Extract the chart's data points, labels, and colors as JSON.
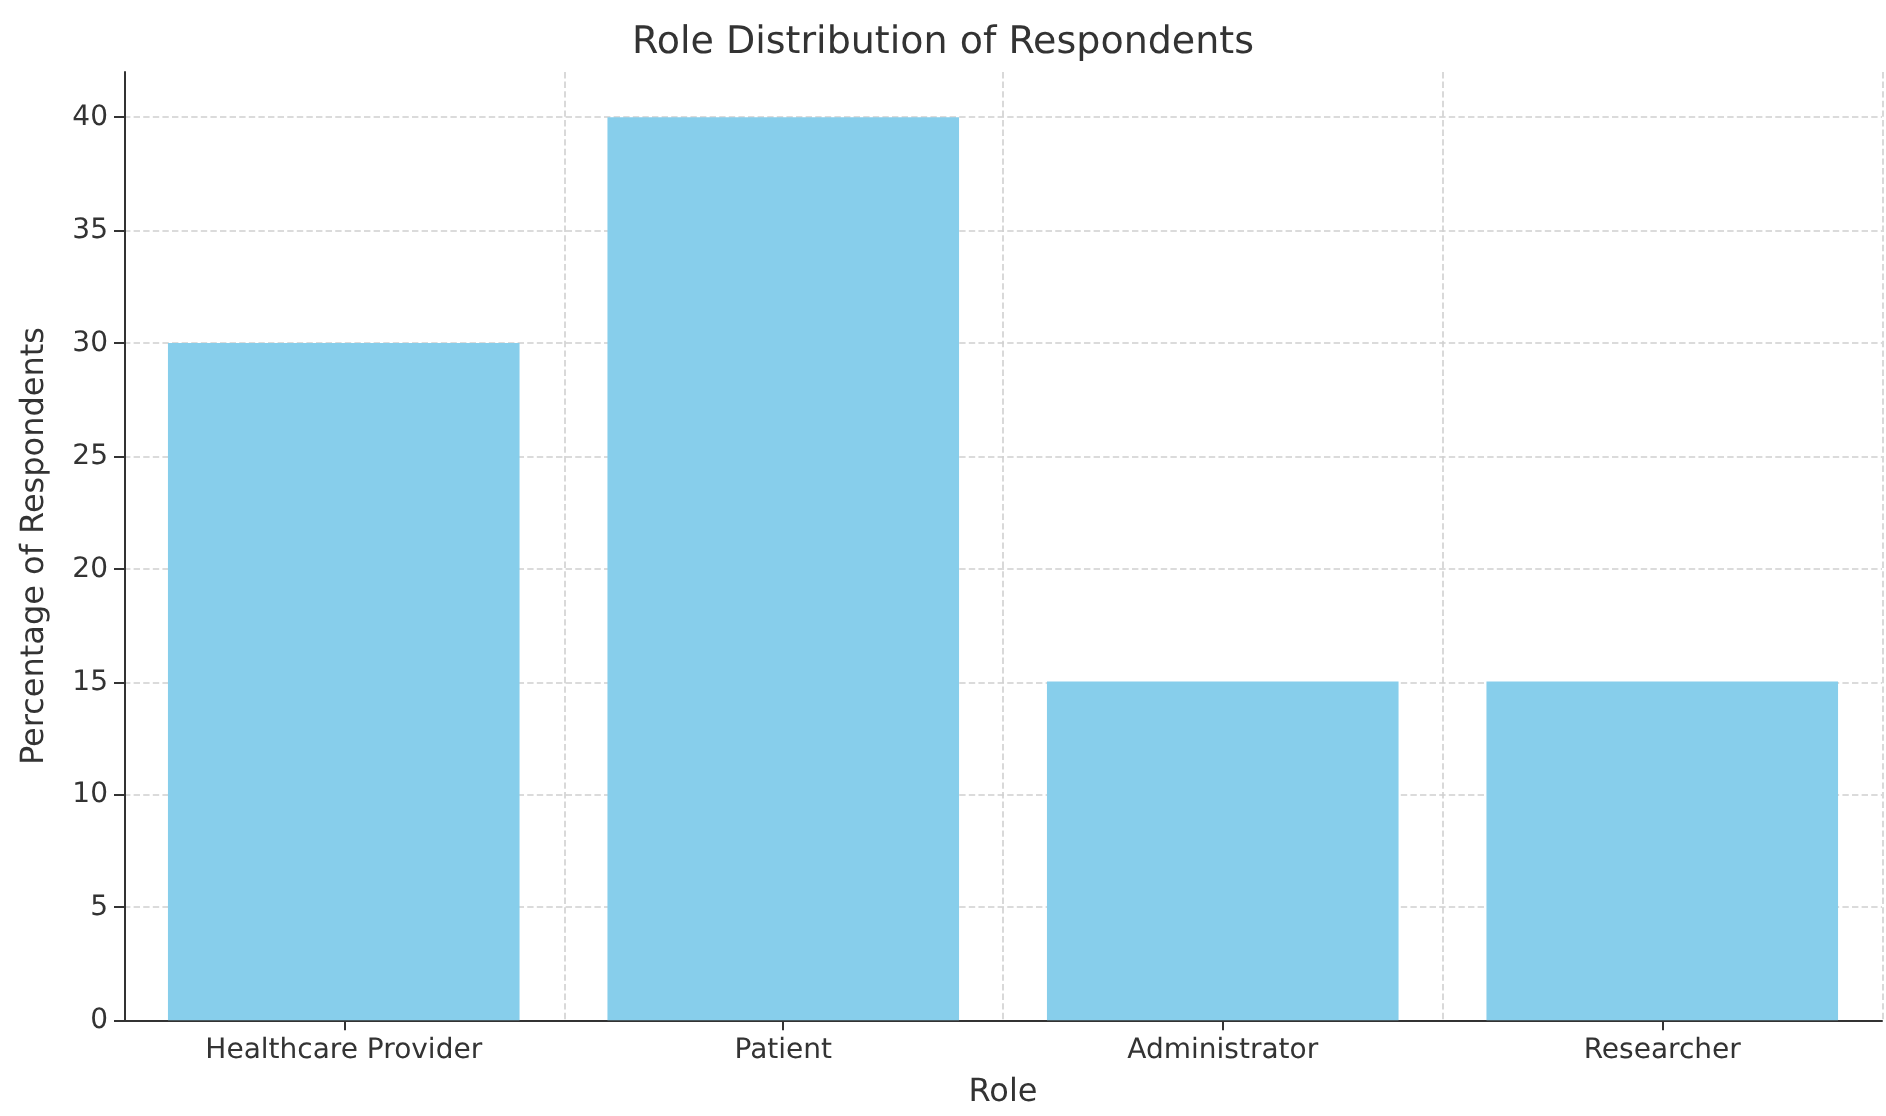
{
  "chart_data": {
    "type": "bar",
    "title": "Role Distribution of Respondents",
    "xlabel": "Role",
    "ylabel": "Percentage of Respondents",
    "categories": [
      "Healthcare Provider",
      "Patient",
      "Administrator",
      "Researcher"
    ],
    "values": [
      30,
      40,
      15,
      15
    ],
    "color": "#87ceeb",
    "ylim": [
      0,
      42
    ],
    "yticks": [
      0,
      5,
      10,
      15,
      20,
      25,
      30,
      35,
      40
    ],
    "grid": true
  }
}
